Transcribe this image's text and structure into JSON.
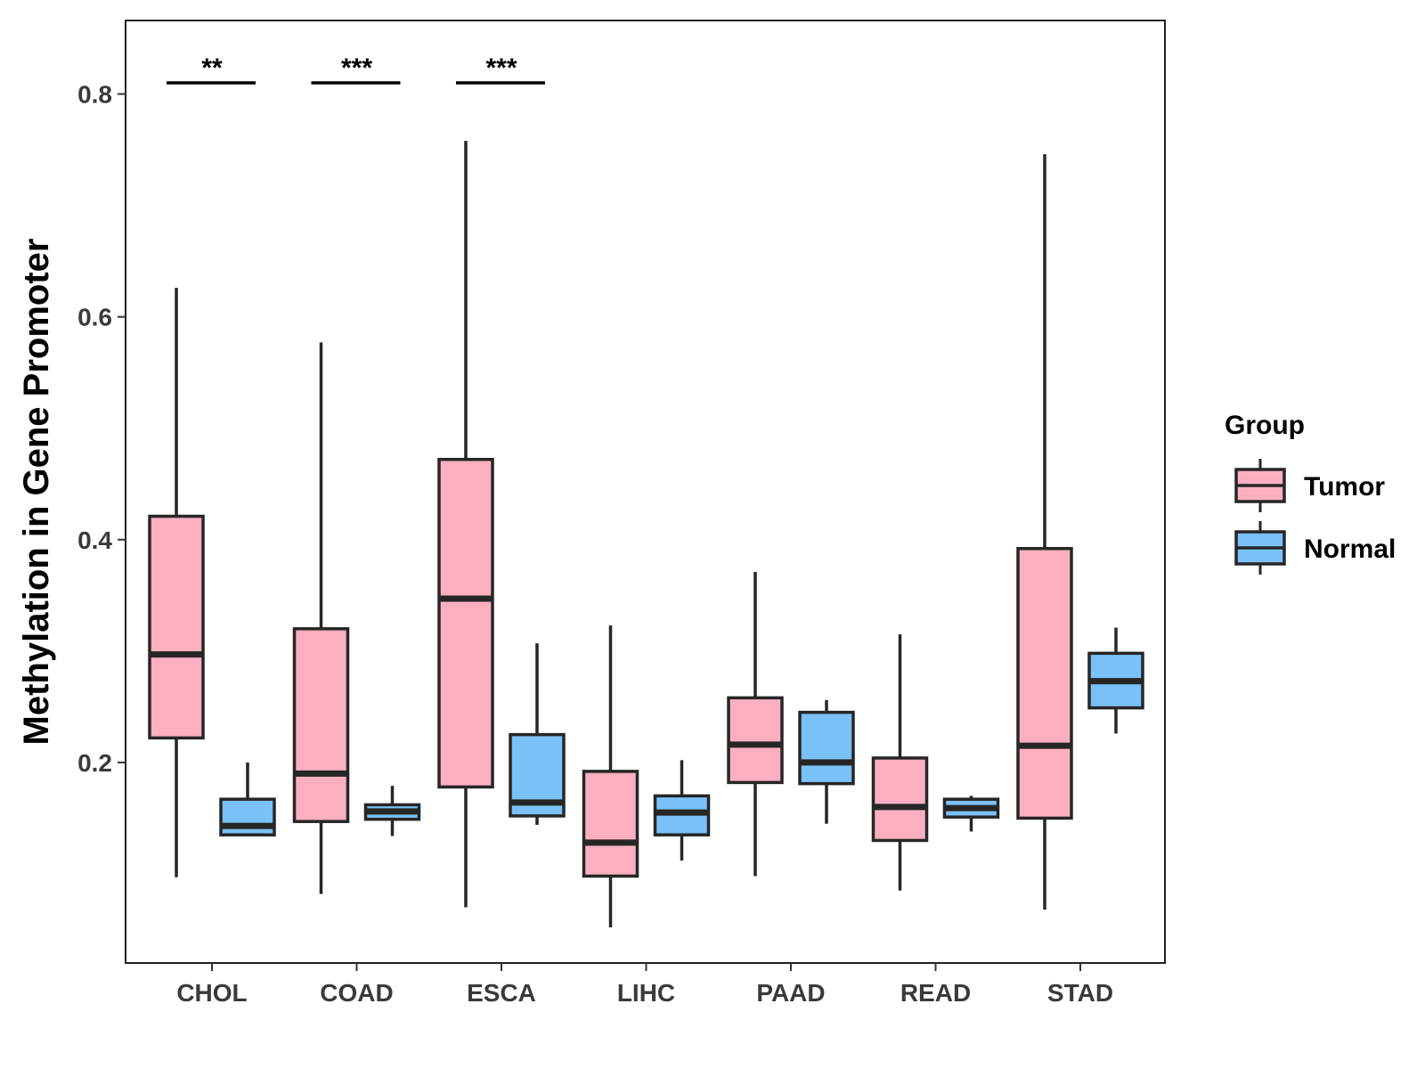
{
  "chart_data": {
    "type": "boxplot",
    "title": "",
    "xlabel": "",
    "ylabel": "Methylation in Gene Promoter",
    "ylim": [
      0.02,
      0.866
    ],
    "yticks": [
      0.2,
      0.4,
      0.6,
      0.8
    ],
    "ytick_labels": [
      "0.2",
      "0.4",
      "0.6",
      "0.8"
    ],
    "grid": false,
    "legend": {
      "title": "Group",
      "position": "right",
      "entries": [
        {
          "name": "Tumor",
          "color": "#FBAFC1"
        },
        {
          "name": "Normal",
          "color": "#7AC1F7"
        }
      ]
    },
    "categories": [
      "CHOL",
      "COAD",
      "ESCA",
      "LIHC",
      "PAAD",
      "READ",
      "STAD"
    ],
    "series": [
      {
        "name": "Tumor",
        "color": "#FBAFC1",
        "boxes": [
          {
            "min": 0.097,
            "q1": 0.222,
            "median": 0.297,
            "q3": 0.421,
            "max": 0.626
          },
          {
            "min": 0.082,
            "q1": 0.147,
            "median": 0.19,
            "q3": 0.32,
            "max": 0.577
          },
          {
            "min": 0.07,
            "q1": 0.178,
            "median": 0.347,
            "q3": 0.472,
            "max": 0.758
          },
          {
            "min": 0.052,
            "q1": 0.098,
            "median": 0.128,
            "q3": 0.192,
            "max": 0.323
          },
          {
            "min": 0.098,
            "q1": 0.182,
            "median": 0.216,
            "q3": 0.258,
            "max": 0.371
          },
          {
            "min": 0.085,
            "q1": 0.13,
            "median": 0.16,
            "q3": 0.204,
            "max": 0.315
          },
          {
            "min": 0.068,
            "q1": 0.15,
            "median": 0.215,
            "q3": 0.392,
            "max": 0.746
          }
        ]
      },
      {
        "name": "Normal",
        "color": "#7AC1F7",
        "boxes": [
          {
            "min": 0.135,
            "q1": 0.135,
            "median": 0.143,
            "q3": 0.167,
            "max": 0.2
          },
          {
            "min": 0.134,
            "q1": 0.149,
            "median": 0.156,
            "q3": 0.162,
            "max": 0.179
          },
          {
            "min": 0.144,
            "q1": 0.152,
            "median": 0.164,
            "q3": 0.225,
            "max": 0.307
          },
          {
            "min": 0.112,
            "q1": 0.135,
            "median": 0.155,
            "q3": 0.17,
            "max": 0.202
          },
          {
            "min": 0.145,
            "q1": 0.181,
            "median": 0.2,
            "q3": 0.245,
            "max": 0.256
          },
          {
            "min": 0.138,
            "q1": 0.151,
            "median": 0.159,
            "q3": 0.167,
            "max": 0.17
          },
          {
            "min": 0.226,
            "q1": 0.249,
            "median": 0.273,
            "q3": 0.298,
            "max": 0.321
          }
        ]
      }
    ],
    "annotations": [
      {
        "category": "CHOL",
        "label": "**",
        "y": 0.81
      },
      {
        "category": "COAD",
        "label": "***",
        "y": 0.81
      },
      {
        "category": "ESCA",
        "label": "***",
        "y": 0.81
      }
    ]
  }
}
